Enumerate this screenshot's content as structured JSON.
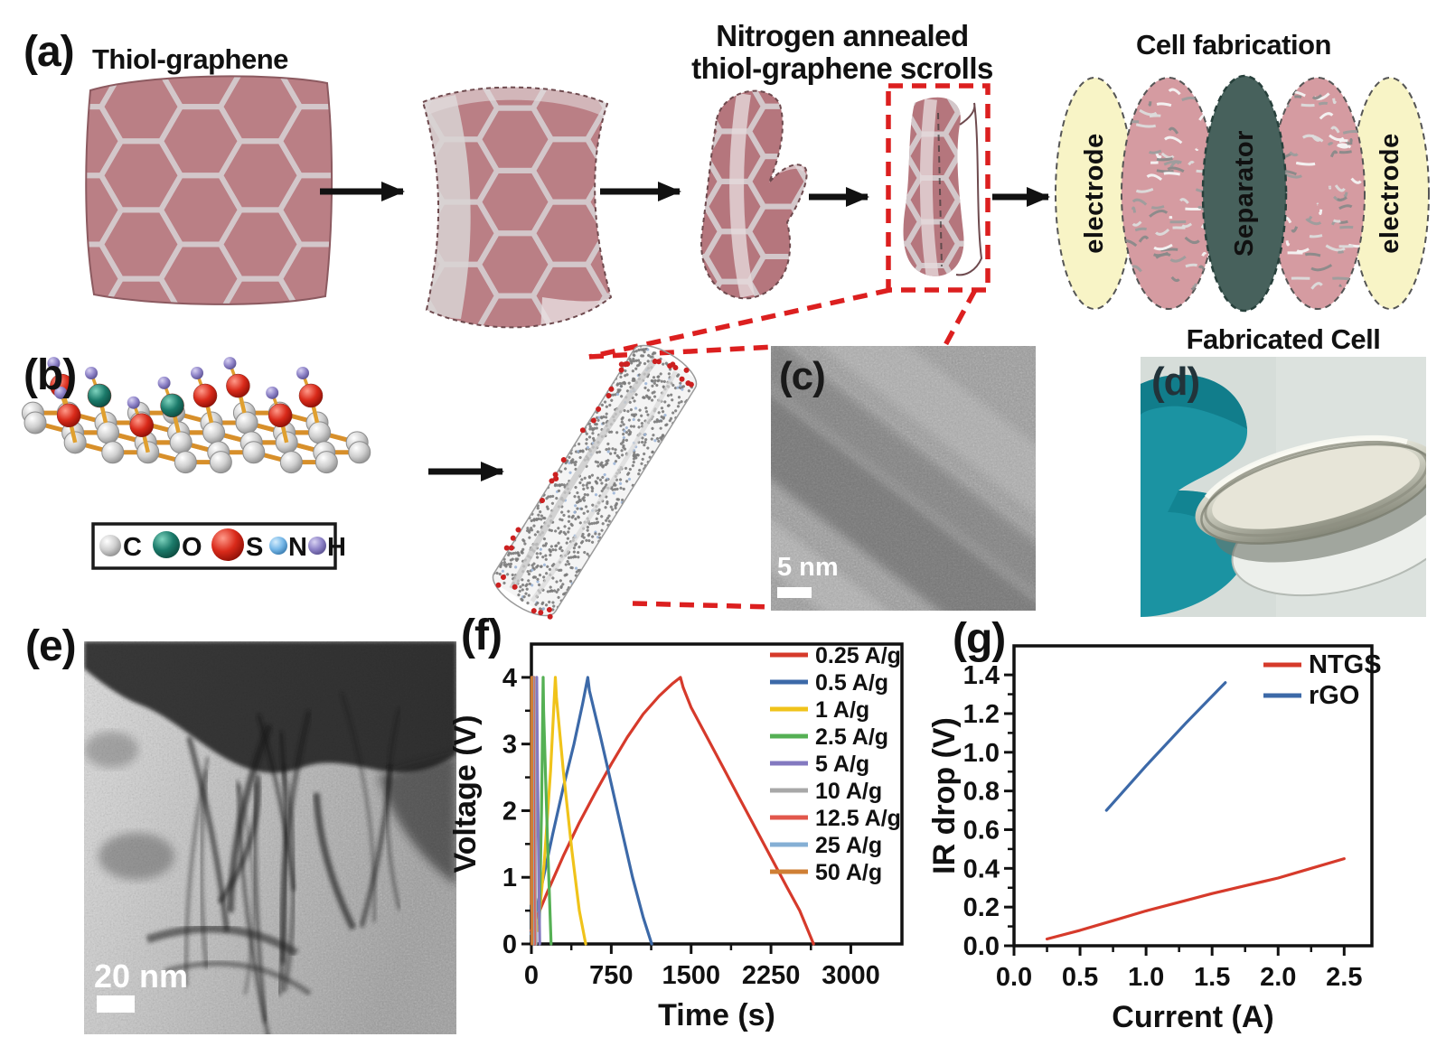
{
  "panel_a": {
    "label": "(a)",
    "step1_title": "Thiol-graphene",
    "step3_title_line1": "Nitrogen annealed",
    "step3_title_line2": "thiol-graphene scrolls",
    "cell_title": "Cell fabrication",
    "electrode_label": "electrode",
    "separator_label": "Separator"
  },
  "panel_b": {
    "label": "(b)",
    "atom_legend": [
      {
        "symbol": "C",
        "color": "#c6c6c6"
      },
      {
        "symbol": "O",
        "color": "#1b7a6a"
      },
      {
        "symbol": "S",
        "color": "#cf1d1d"
      },
      {
        "symbol": "N",
        "color": "#77b8e8"
      },
      {
        "symbol": "H",
        "color": "#8f84c8"
      }
    ]
  },
  "panel_c": {
    "label": "(c)",
    "scale_bar": "5 nm"
  },
  "panel_d": {
    "label": "(d)",
    "title": "Fabricated Cell"
  },
  "panel_e": {
    "label": "(e)",
    "scale_bar": "20 nm"
  },
  "panel_f": {
    "label": "(f)"
  },
  "panel_g": {
    "label": "(g)"
  },
  "chart_data": [
    {
      "panel": "f",
      "type": "line",
      "title": "",
      "xlabel": "Time (s)",
      "ylabel": "Voltage (V)",
      "xlim": [
        0,
        3480
      ],
      "ylim": [
        0,
        4.5
      ],
      "grid": false,
      "legend_position": "top-right",
      "xticks": [
        [
          0,
          "0"
        ],
        [
          750,
          "750"
        ],
        [
          1500,
          "1500"
        ],
        [
          2250,
          "2250"
        ],
        [
          3000,
          "3000"
        ]
      ],
      "yticks": [
        [
          0,
          "0"
        ],
        [
          1,
          "1"
        ],
        [
          2,
          "2"
        ],
        [
          3,
          "3"
        ],
        [
          4,
          "4"
        ]
      ],
      "series": [
        {
          "name": "0.25 A/g",
          "color": "#d63a2b",
          "points": [
            [
              0,
              0.2
            ],
            [
              150,
              0.78
            ],
            [
              300,
              1.32
            ],
            [
              450,
              1.82
            ],
            [
              600,
              2.27
            ],
            [
              750,
              2.7
            ],
            [
              900,
              3.1
            ],
            [
              1050,
              3.45
            ],
            [
              1200,
              3.72
            ],
            [
              1320,
              3.9
            ],
            [
              1400,
              4.0
            ],
            [
              1425,
              3.85
            ],
            [
              1500,
              3.55
            ],
            [
              1650,
              3.1
            ],
            [
              1800,
              2.65
            ],
            [
              1950,
              2.2
            ],
            [
              2100,
              1.75
            ],
            [
              2250,
              1.3
            ],
            [
              2400,
              0.85
            ],
            [
              2520,
              0.5
            ],
            [
              2650,
              0
            ]
          ]
        },
        {
          "name": "0.5 A/g",
          "color": "#3c69a8",
          "points": [
            [
              0,
              0.15
            ],
            [
              100,
              0.9
            ],
            [
              200,
              1.65
            ],
            [
              300,
              2.35
            ],
            [
              400,
              3.0
            ],
            [
              480,
              3.6
            ],
            [
              530,
              4.0
            ],
            [
              545,
              3.8
            ],
            [
              650,
              3.1
            ],
            [
              750,
              2.4
            ],
            [
              850,
              1.7
            ],
            [
              950,
              1.0
            ],
            [
              1050,
              0.4
            ],
            [
              1130,
              0
            ]
          ]
        },
        {
          "name": "1 A/g",
          "color": "#f0c31a",
          "points": [
            [
              60,
              0.2
            ],
            [
              120,
              1.2
            ],
            [
              180,
              2.6
            ],
            [
              225,
              4.0
            ],
            [
              235,
              3.7
            ],
            [
              300,
              2.6
            ],
            [
              380,
              1.4
            ],
            [
              450,
              0.5
            ],
            [
              510,
              0
            ]
          ]
        },
        {
          "name": "2.5 A/g",
          "color": "#55b054",
          "points": [
            [
              75,
              0.3
            ],
            [
              95,
              2.0
            ],
            [
              110,
              4.0
            ],
            [
              115,
              3.5
            ],
            [
              150,
              1.6
            ],
            [
              185,
              0
            ]
          ]
        },
        {
          "name": "5 A/g",
          "color": "#8379c0",
          "points": [
            [
              30,
              0.3
            ],
            [
              42,
              2.2
            ],
            [
              50,
              4.0
            ],
            [
              54,
              3.2
            ],
            [
              68,
              1.2
            ],
            [
              78,
              0
            ]
          ]
        },
        {
          "name": "10 A/g",
          "color": "#a8a8a8",
          "points": [
            [
              14,
              0.3
            ],
            [
              22,
              2.4
            ],
            [
              26,
              4.0
            ],
            [
              29,
              3.0
            ],
            [
              38,
              1.0
            ],
            [
              44,
              0
            ]
          ]
        },
        {
          "name": "12.5 A/g",
          "color": "#e2574c",
          "points": [
            [
              9,
              0.4
            ],
            [
              14,
              2.5
            ],
            [
              17,
              4.0
            ],
            [
              19,
              2.8
            ],
            [
              25,
              0.8
            ],
            [
              28,
              0
            ]
          ]
        },
        {
          "name": "25 A/g",
          "color": "#85afd4",
          "points": [
            [
              4,
              0.5
            ],
            [
              7,
              2.6
            ],
            [
              9,
              4.0
            ],
            [
              10,
              2.6
            ],
            [
              13,
              0.6
            ],
            [
              15,
              0
            ]
          ]
        },
        {
          "name": "50 A/g",
          "color": "#cf7f35",
          "points": [
            [
              1,
              0.6
            ],
            [
              2.5,
              2.8
            ],
            [
              3.5,
              4.0
            ],
            [
              4.5,
              2.4
            ],
            [
              6,
              0
            ]
          ]
        }
      ]
    },
    {
      "panel": "g",
      "type": "line",
      "title": "",
      "xlabel": "Current (A)",
      "ylabel": "IR drop (V)",
      "xlim": [
        0,
        2.71
      ],
      "ylim": [
        0,
        1.55
      ],
      "grid": false,
      "legend_position": "top-right",
      "xticks": [
        [
          0,
          "0.0"
        ],
        [
          0.5,
          "0.5"
        ],
        [
          1,
          "1.0"
        ],
        [
          1.5,
          "1.5"
        ],
        [
          2,
          "2.0"
        ],
        [
          2.5,
          "2.5"
        ]
      ],
      "yticks": [
        [
          0,
          "0.0"
        ],
        [
          0.2,
          "0.2"
        ],
        [
          0.4,
          "0.4"
        ],
        [
          0.6,
          "0.6"
        ],
        [
          0.8,
          "0.8"
        ],
        [
          1,
          "1.0"
        ],
        [
          1.2,
          "1.2"
        ],
        [
          1.4,
          "1.4"
        ]
      ],
      "series": [
        {
          "name": "NTGS",
          "color": "#d63a2b",
          "points": [
            [
              0.25,
              0.035
            ],
            [
              0.5,
              0.08
            ],
            [
              0.75,
              0.13
            ],
            [
              1.0,
              0.18
            ],
            [
              1.25,
              0.225
            ],
            [
              1.5,
              0.27
            ],
            [
              1.75,
              0.31
            ],
            [
              2.0,
              0.35
            ],
            [
              2.25,
              0.4
            ],
            [
              2.5,
              0.45
            ]
          ]
        },
        {
          "name": "rGO",
          "color": "#3c69a8",
          "points": [
            [
              0.7,
              0.7
            ],
            [
              1.0,
              0.93
            ],
            [
              1.3,
              1.15
            ],
            [
              1.6,
              1.36
            ]
          ]
        }
      ]
    }
  ]
}
